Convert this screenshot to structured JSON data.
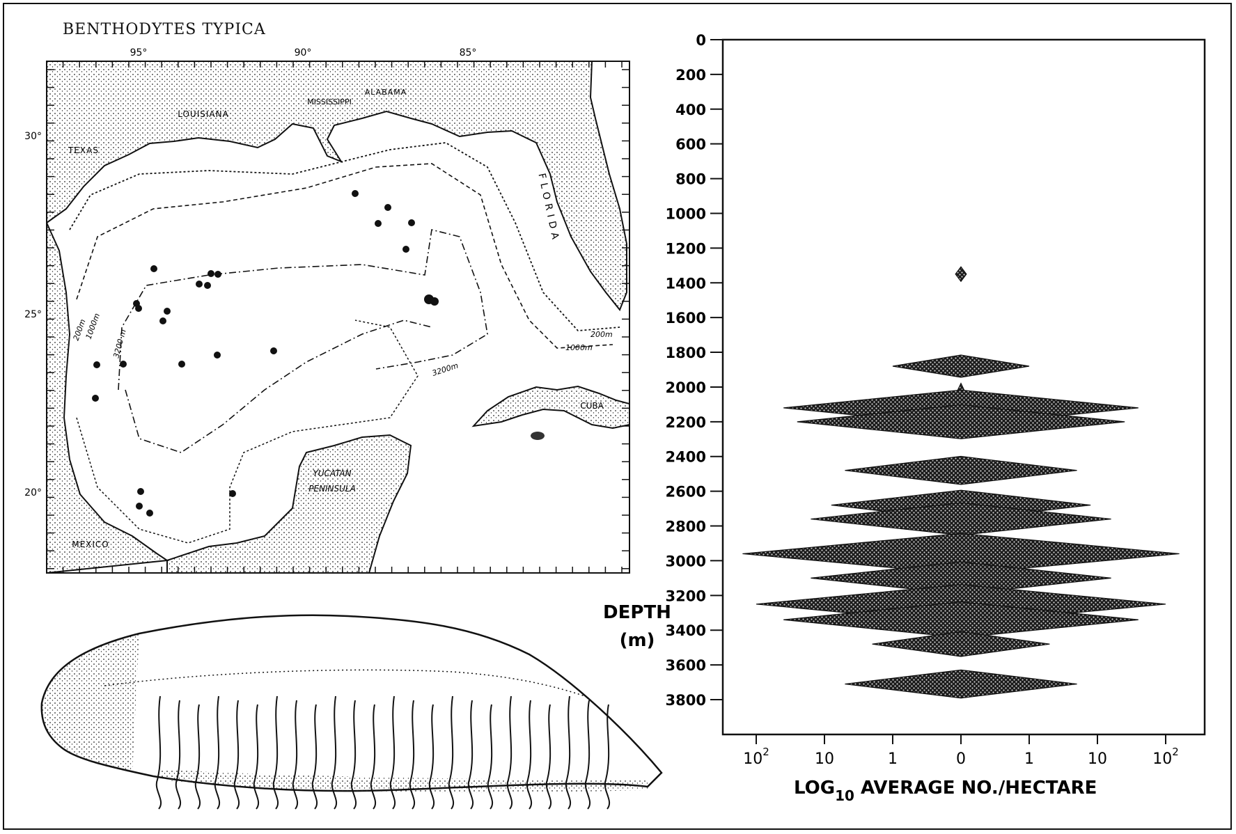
{
  "figure": {
    "title": "BENTHODYTES TYPICA"
  },
  "map": {
    "longitude_labels": [
      "95°",
      "90°",
      "85°"
    ],
    "latitude_labels": [
      "30°",
      "25°",
      "20°"
    ],
    "place_labels": {
      "texas": "TEXAS",
      "louisiana": "LOUISIANA",
      "mississippi": "MISSISSIPPI",
      "alabama": "ALABAMA",
      "florida": "FLORIDA",
      "mexico": "MEXICO",
      "cuba": "CUBA",
      "yucatan": "YUCATAN",
      "peninsula": "PENINSULA"
    },
    "contour_labels": [
      "200m",
      "1000m",
      "3200 m",
      "3200m",
      "200m",
      "1000m"
    ],
    "station_count_note": "dots mark collection stations"
  },
  "chart_data": {
    "type": "kite diagram",
    "ylabel_line1": "DEPTH",
    "ylabel_line2": "(m)",
    "xlabel_main": "LOG",
    "xlabel_sub": "10",
    "xlabel_rest": " AVERAGE NO./HECTARE",
    "y_ticks": [
      0,
      200,
      400,
      600,
      800,
      1000,
      1200,
      1400,
      1600,
      1800,
      2000,
      2200,
      2400,
      2600,
      2800,
      3000,
      3200,
      3400,
      3600,
      3800
    ],
    "x_tick_labels": [
      "10",
      "10",
      "1",
      "0",
      "1",
      "10",
      "10"
    ],
    "x_tick_exponents": [
      "2",
      "",
      "",
      "",
      "",
      "",
      "2"
    ],
    "ylim": [
      0,
      3800
    ],
    "x_scale": "log10 (mirrored about 0)",
    "kites": [
      {
        "depth": 1350,
        "log_half_width": 0.08
      },
      {
        "depth": 1880,
        "log_half_width": 1.0
      },
      {
        "depth": 2020,
        "log_half_width": 0.05
      },
      {
        "depth": 2120,
        "log_half_width": 2.6
      },
      {
        "depth": 2200,
        "log_half_width": 2.4
      },
      {
        "depth": 2480,
        "log_half_width": 1.7
      },
      {
        "depth": 2680,
        "log_half_width": 1.9
      },
      {
        "depth": 2760,
        "log_half_width": 2.2
      },
      {
        "depth": 2960,
        "log_half_width": 3.2
      },
      {
        "depth": 3100,
        "log_half_width": 2.2
      },
      {
        "depth": 3250,
        "log_half_width": 3.0
      },
      {
        "depth": 3340,
        "log_half_width": 2.6
      },
      {
        "depth": 3480,
        "log_half_width": 1.3
      },
      {
        "depth": 3710,
        "log_half_width": 1.7
      }
    ]
  }
}
